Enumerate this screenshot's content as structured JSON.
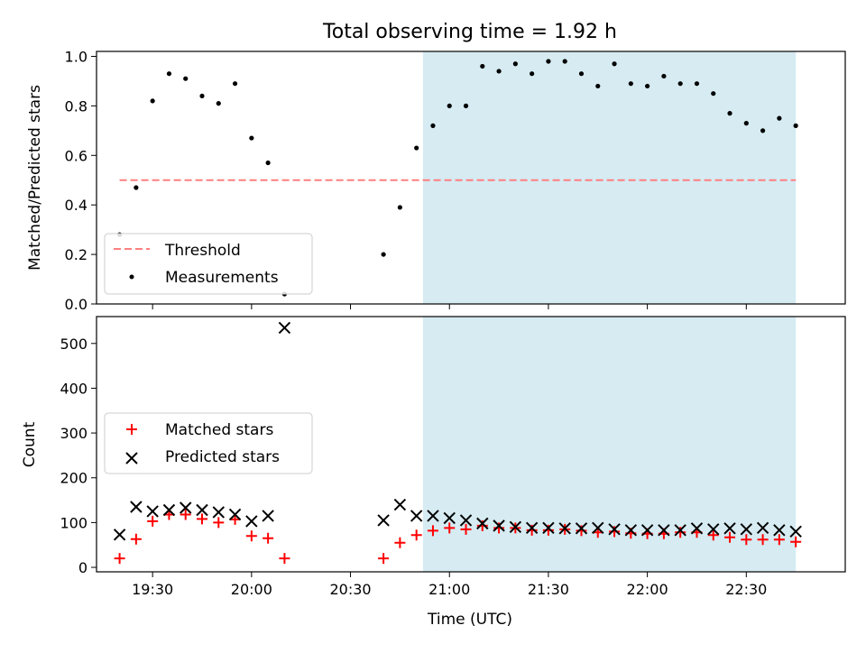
{
  "chart_data": {
    "type": "scatter",
    "title": "Total observing time = 1.92 h",
    "xlabel": "Time (UTC)",
    "x_ticks": [
      "19:30",
      "20:00",
      "20:30",
      "21:00",
      "21:30",
      "22:00",
      "22:30"
    ],
    "x_range": [
      "19:13",
      "23:00"
    ],
    "shaded_interval": [
      "20:52",
      "22:45"
    ],
    "shade_color": "#add8e6",
    "panels": [
      {
        "ylabel": "Matched/Predicted stars",
        "ylim": [
          0,
          1.02
        ],
        "y_ticks": [
          "0.0",
          "0.2",
          "0.4",
          "0.6",
          "0.8",
          "1.0"
        ],
        "threshold": {
          "name": "Threshold",
          "value": 0.5,
          "color": "#ff7f7f"
        },
        "series": [
          {
            "name": "Measurements",
            "color": "#000000",
            "x": [
              "19:20",
              "19:25",
              "19:30",
              "19:35",
              "19:40",
              "19:45",
              "19:50",
              "19:55",
              "20:00",
              "20:05",
              "20:10",
              "20:40",
              "20:45",
              "20:50",
              "20:55",
              "21:00",
              "21:05",
              "21:10",
              "21:15",
              "21:20",
              "21:25",
              "21:30",
              "21:35",
              "21:40",
              "21:45",
              "21:50",
              "21:55",
              "22:00",
              "22:05",
              "22:10",
              "22:15",
              "22:20",
              "22:25",
              "22:30",
              "22:35",
              "22:40",
              "22:45"
            ],
            "y": [
              0.28,
              0.47,
              0.82,
              0.93,
              0.91,
              0.84,
              0.81,
              0.89,
              0.67,
              0.57,
              0.04,
              0.2,
              0.39,
              0.63,
              0.72,
              0.8,
              0.8,
              0.96,
              0.94,
              0.97,
              0.93,
              0.98,
              0.98,
              0.93,
              0.88,
              0.97,
              0.89,
              0.88,
              0.92,
              0.89,
              0.89,
              0.85,
              0.77,
              0.73,
              0.7,
              0.75,
              0.72
            ]
          }
        ],
        "legend": "lower-left"
      },
      {
        "ylabel": "Count",
        "ylim": [
          -10,
          560
        ],
        "y_ticks": [
          "0",
          "100",
          "200",
          "300",
          "400",
          "500"
        ],
        "series": [
          {
            "name": "Matched stars",
            "color": "#ff0000",
            "x": [
              "19:20",
              "19:25",
              "19:30",
              "19:35",
              "19:40",
              "19:45",
              "19:50",
              "19:55",
              "20:00",
              "20:05",
              "20:10",
              "20:40",
              "20:45",
              "20:50",
              "20:55",
              "21:00",
              "21:05",
              "21:10",
              "21:15",
              "21:20",
              "21:25",
              "21:30",
              "21:35",
              "21:40",
              "21:45",
              "21:50",
              "21:55",
              "22:00",
              "22:05",
              "22:10",
              "22:15",
              "22:20",
              "22:25",
              "22:30",
              "22:35",
              "22:40",
              "22:45"
            ],
            "y": [
              20,
              63,
              103,
              118,
              118,
              108,
              100,
              107,
              70,
              65,
              20,
              20,
              55,
              72,
              82,
              88,
              85,
              93,
              88,
              88,
              83,
              83,
              85,
              82,
              78,
              80,
              76,
              75,
              75,
              78,
              78,
              72,
              67,
              62,
              62,
              62,
              57
            ]
          },
          {
            "name": "Predicted stars",
            "color": "#000000",
            "x": [
              "19:20",
              "19:25",
              "19:30",
              "19:35",
              "19:40",
              "19:45",
              "19:50",
              "19:55",
              "20:00",
              "20:05",
              "20:10",
              "20:40",
              "20:45",
              "20:50",
              "20:55",
              "21:00",
              "21:05",
              "21:10",
              "21:15",
              "21:20",
              "21:25",
              "21:30",
              "21:35",
              "21:40",
              "21:45",
              "21:50",
              "21:55",
              "22:00",
              "22:05",
              "22:10",
              "22:15",
              "22:20",
              "22:25",
              "22:30",
              "22:35",
              "22:40",
              "22:45"
            ],
            "y": [
              73,
              135,
              125,
              128,
              133,
              128,
              123,
              118,
              103,
              115,
              535,
              105,
              140,
              115,
              115,
              110,
              105,
              98,
              93,
              90,
              88,
              88,
              87,
              87,
              88,
              85,
              83,
              83,
              83,
              83,
              87,
              85,
              87,
              85,
              88,
              83,
              80
            ]
          }
        ],
        "legend": "center-left"
      }
    ]
  }
}
